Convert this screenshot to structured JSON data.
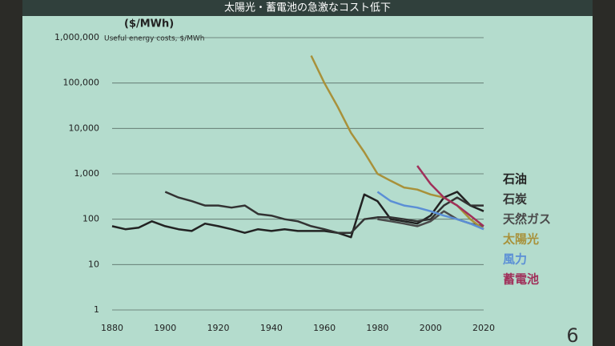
{
  "chart_data": {
    "type": "line",
    "title": "太陽光・蓄電池の急激なコスト低下",
    "y_unit": "($/MWh)",
    "subtitle": "Useful energy costs, $/MWh",
    "page_number": "6",
    "log_scale": true,
    "grid": true,
    "x": [
      1880,
      1885,
      1890,
      1895,
      1900,
      1905,
      1910,
      1915,
      1920,
      1925,
      1930,
      1935,
      1940,
      1945,
      1950,
      1955,
      1960,
      1965,
      1970,
      1975,
      1980,
      1985,
      1990,
      1995,
      2000,
      2005,
      2010,
      2015,
      2020
    ],
    "xlim": [
      1880,
      2020
    ],
    "xticks": [
      1880,
      1900,
      1920,
      1940,
      1960,
      1980,
      2000,
      2020
    ],
    "ylim": [
      1,
      1000000
    ],
    "yticks": [
      1,
      10,
      100,
      {
        "value": 1000,
        "label": "1,000"
      },
      {
        "value": 10000,
        "label": "10,000"
      },
      {
        "value": 100000,
        "label": "100,000"
      },
      {
        "value": 1000000,
        "label": "1,000,000"
      }
    ],
    "series": [
      {
        "name": "石油",
        "color": "#222222",
        "values": [
          70,
          60,
          65,
          90,
          70,
          60,
          55,
          80,
          70,
          60,
          50,
          60,
          55,
          60,
          55,
          55,
          55,
          50,
          40,
          350,
          250,
          100,
          90,
          80,
          120,
          300,
          400,
          200,
          150
        ]
      },
      {
        "name": "石炭",
        "color": "#333333",
        "values": [
          null,
          null,
          null,
          null,
          400,
          300,
          250,
          200,
          200,
          180,
          200,
          130,
          120,
          100,
          90,
          70,
          60,
          50,
          50,
          100,
          110,
          110,
          100,
          90,
          100,
          200,
          300,
          200,
          200
        ]
      },
      {
        "name": "天然ガス",
        "color": "#4a4a4a",
        "values": [
          null,
          null,
          null,
          null,
          null,
          null,
          null,
          null,
          null,
          null,
          null,
          null,
          null,
          null,
          null,
          null,
          null,
          null,
          null,
          null,
          100,
          90,
          80,
          70,
          90,
          150,
          100,
          80,
          70
        ]
      },
      {
        "name": "太陽光",
        "color": "#a8913a",
        "values": [
          null,
          null,
          null,
          null,
          null,
          null,
          null,
          null,
          null,
          null,
          null,
          null,
          null,
          null,
          null,
          400000,
          100000,
          30000,
          8000,
          3000,
          1000,
          700,
          500,
          450,
          350,
          300,
          200,
          100,
          60
        ]
      },
      {
        "name": "風力",
        "color": "#5b8fd6",
        "values": [
          null,
          null,
          null,
          null,
          null,
          null,
          null,
          null,
          null,
          null,
          null,
          null,
          null,
          null,
          null,
          null,
          null,
          null,
          null,
          null,
          400,
          250,
          200,
          180,
          150,
          120,
          100,
          80,
          60
        ]
      },
      {
        "name": "蓄電池",
        "color": "#a0305a",
        "values": [
          null,
          null,
          null,
          null,
          null,
          null,
          null,
          null,
          null,
          null,
          null,
          null,
          null,
          null,
          null,
          null,
          null,
          null,
          null,
          null,
          null,
          null,
          null,
          1500,
          600,
          300,
          200,
          120,
          70
        ]
      }
    ]
  }
}
